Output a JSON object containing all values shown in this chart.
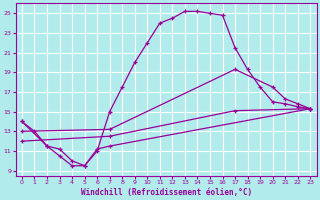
{
  "xlabel": "Windchill (Refroidissement éolien,°C)",
  "bg_color": "#b2ebeb",
  "grid_color": "#ffffff",
  "line_color": "#990099",
  "xlim": [
    -0.5,
    23.5
  ],
  "ylim": [
    8.5,
    26.0
  ],
  "xticks": [
    0,
    1,
    2,
    3,
    4,
    5,
    6,
    7,
    8,
    9,
    10,
    11,
    12,
    13,
    14,
    15,
    16,
    17,
    18,
    19,
    20,
    21,
    22,
    23
  ],
  "yticks": [
    9,
    11,
    13,
    15,
    17,
    19,
    21,
    23,
    25
  ],
  "series1_x": [
    0,
    1,
    2,
    3,
    4,
    5,
    6,
    7,
    8,
    9,
    10,
    11,
    12,
    13,
    14,
    15,
    16,
    17,
    18,
    19,
    20,
    21,
    22,
    23
  ],
  "series1_y": [
    14.0,
    13.0,
    11.5,
    10.5,
    9.5,
    9.5,
    11.0,
    15.0,
    17.5,
    20.0,
    22.0,
    24.0,
    24.5,
    25.2,
    25.2,
    25.0,
    24.8,
    21.5,
    19.3,
    17.5,
    16.0,
    15.8,
    15.5,
    15.3
  ],
  "series2_x": [
    0,
    2,
    3,
    4,
    5,
    6,
    7,
    23
  ],
  "series2_y": [
    14.0,
    11.5,
    11.2,
    10.0,
    9.5,
    11.2,
    11.5,
    15.3
  ],
  "series3_x": [
    0,
    7,
    17,
    20,
    21,
    22,
    23
  ],
  "series3_y": [
    13.0,
    13.2,
    19.3,
    17.5,
    16.3,
    15.8,
    15.3
  ],
  "series4_x": [
    0,
    7,
    17,
    23
  ],
  "series4_y": [
    12.0,
    12.5,
    15.1,
    15.3
  ]
}
